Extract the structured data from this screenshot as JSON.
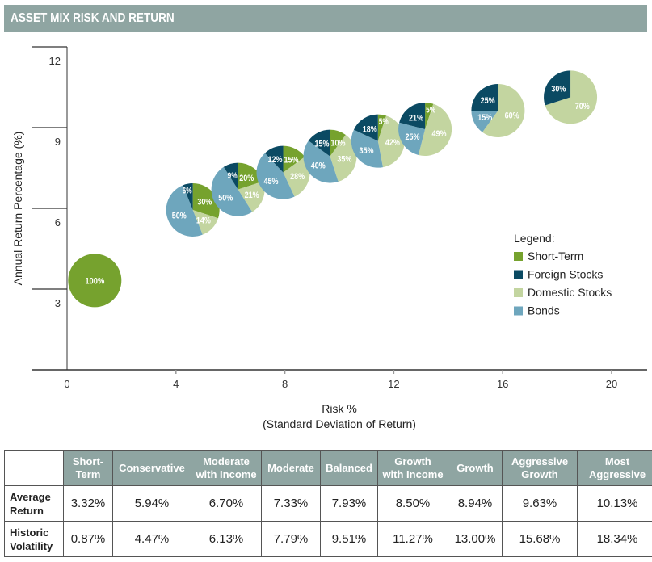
{
  "header": {
    "title": "ASSET MIX RISK AND RETURN"
  },
  "colors": {
    "short_term": "#76a22e",
    "foreign": "#0b4a63",
    "domestic": "#c3d5a0",
    "bonds": "#6ea6bd",
    "header": "#8fa5a2"
  },
  "chart_data": {
    "type": "scatter",
    "title": "ASSET MIX RISK AND RETURN",
    "xlabel": "Risk %",
    "xlabel2": "(Standard Deviation of Return)",
    "ylabel": "Annual Return Percentage (%)",
    "xlim": [
      0,
      20
    ],
    "ylim": [
      0,
      12
    ],
    "xticks": [
      "0",
      "4",
      "8",
      "12",
      "16",
      "20"
    ],
    "yticks": [
      "3",
      "6",
      "9",
      "12"
    ],
    "legend": {
      "title": "Legend:",
      "placement": "right",
      "items": [
        "Short-Term",
        "Foreign Stocks",
        "Domestic Stocks",
        "Bonds"
      ]
    },
    "points": [
      {
        "name": "Short-Term",
        "x": 0.87,
        "y": 3.32,
        "short_term": 100,
        "foreign": 0,
        "domestic": 0,
        "bonds": 0
      },
      {
        "name": "Conservative",
        "x": 4.47,
        "y": 5.94,
        "short_term": 30,
        "foreign": 6,
        "domestic": 14,
        "bonds": 50
      },
      {
        "name": "Moderate with Income",
        "x": 6.13,
        "y": 6.7,
        "short_term": 20,
        "foreign": 9,
        "domestic": 21,
        "bonds": 50
      },
      {
        "name": "Moderate",
        "x": 7.79,
        "y": 7.33,
        "short_term": 15,
        "foreign": 12,
        "domestic": 28,
        "bonds": 45
      },
      {
        "name": "Balanced",
        "x": 9.51,
        "y": 7.93,
        "short_term": 10,
        "foreign": 15,
        "domestic": 35,
        "bonds": 40
      },
      {
        "name": "Growth with Income",
        "x": 11.27,
        "y": 8.5,
        "short_term": 5,
        "foreign": 18,
        "domestic": 42,
        "bonds": 35
      },
      {
        "name": "Growth",
        "x": 13.0,
        "y": 8.94,
        "short_term": 5,
        "foreign": 21,
        "domestic": 49,
        "bonds": 25
      },
      {
        "name": "Aggressive Growth",
        "x": 15.68,
        "y": 9.63,
        "short_term": 0,
        "foreign": 25,
        "domestic": 60,
        "bonds": 15
      },
      {
        "name": "Most Aggressive",
        "x": 18.34,
        "y": 10.13,
        "short_term": 0,
        "foreign": 30,
        "domestic": 70,
        "bonds": 0
      }
    ]
  },
  "table": {
    "columns": [
      "Short-Term",
      "Conservative",
      "Moderate with Income",
      "Moderate",
      "Balanced",
      "Growth with Income",
      "Growth",
      "Aggressive Growth",
      "Most Aggressive"
    ],
    "columns_html": [
      [
        "Short-",
        "Term"
      ],
      [
        "Conservative"
      ],
      [
        "Moderate",
        "with Income"
      ],
      [
        "Moderate"
      ],
      [
        "Balanced"
      ],
      [
        "Growth",
        "with Income"
      ],
      [
        "Growth"
      ],
      [
        "Aggressive",
        "Growth"
      ],
      [
        "Most",
        "Aggressive"
      ]
    ],
    "rows": [
      {
        "label": [
          "Average",
          "Return"
        ],
        "values": [
          "3.32%",
          "5.94%",
          "6.70%",
          "7.33%",
          "7.93%",
          "8.50%",
          "8.94%",
          "9.63%",
          "10.13%"
        ]
      },
      {
        "label": [
          "Historic",
          "Volatility"
        ],
        "values": [
          "0.87%",
          "4.47%",
          "6.13%",
          "7.79%",
          "9.51%",
          "11.27%",
          "13.00%",
          "15.68%",
          "18.34%"
        ]
      }
    ]
  }
}
